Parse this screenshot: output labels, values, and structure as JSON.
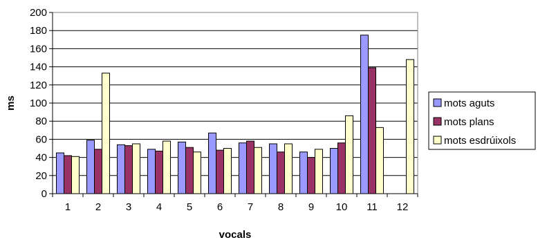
{
  "chart_data": {
    "type": "bar",
    "title": "",
    "xlabel": "vocals",
    "ylabel": "ms",
    "ylim": [
      0,
      200
    ],
    "ytick_step": 20,
    "grid": "horizontal",
    "legend_position": "right",
    "categories": [
      "1",
      "2",
      "3",
      "4",
      "5",
      "6",
      "7",
      "8",
      "9",
      "10",
      "11",
      "12"
    ],
    "series": [
      {
        "name": "mots aguts",
        "color": "#9999ff",
        "values": [
          45,
          59,
          54,
          49,
          57,
          67,
          56,
          55,
          46,
          50,
          175,
          null
        ]
      },
      {
        "name": "mots plans",
        "color": "#993366",
        "values": [
          42,
          49,
          53,
          47,
          51,
          48,
          58,
          46,
          40,
          56,
          139,
          null
        ]
      },
      {
        "name": "mots esdrúixols",
        "color": "#ffffcc",
        "values": [
          41,
          133,
          55,
          58,
          46,
          50,
          51,
          55,
          49,
          86,
          73,
          148
        ]
      }
    ]
  }
}
